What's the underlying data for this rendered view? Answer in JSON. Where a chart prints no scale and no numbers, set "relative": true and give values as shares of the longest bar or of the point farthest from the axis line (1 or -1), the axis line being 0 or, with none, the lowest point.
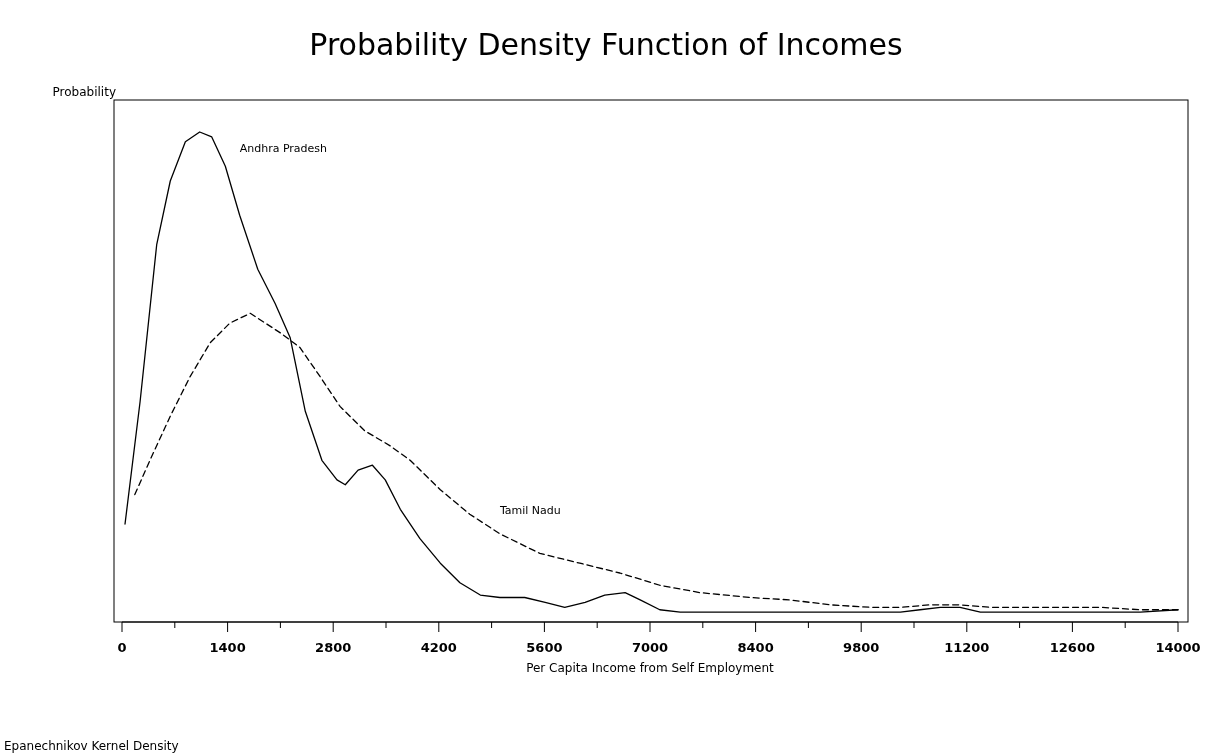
{
  "chart_data": {
    "type": "line",
    "title": "Probability Density Function of Incomes",
    "xlabel": "Per Capita Income from Self Employment",
    "ylabel": "Probability",
    "relative": true,
    "xlim": [
      0,
      14000
    ],
    "xticks": [
      0,
      {
        "value": 700,
        "label": null
      },
      1400,
      {
        "value": 2100,
        "label": null
      },
      2800,
      {
        "value": 3500,
        "label": null
      },
      4200,
      {
        "value": 4900,
        "label": null
      },
      5600,
      {
        "value": 6300,
        "label": null
      },
      7000,
      {
        "value": 7700,
        "label": null
      },
      8400,
      {
        "value": 9100,
        "label": null
      },
      9800,
      {
        "value": 10500,
        "label": null
      },
      11200,
      {
        "value": 11900,
        "label": null
      },
      12600,
      {
        "value": 13300,
        "label": null
      },
      14000
    ],
    "grid": false,
    "marker": "none",
    "annotations": [
      "Epanechnikov Kernel Density"
    ],
    "series": [
      {
        "name": "Andhra Pradesh",
        "color": "#000000",
        "line_style": "solid",
        "x": [
          40,
          240,
          460,
          640,
          840,
          1030,
          1190,
          1370,
          1560,
          1800,
          2030,
          2230,
          2430,
          2650,
          2850,
          2960,
          3130,
          3320,
          3490,
          3690,
          3950,
          4220,
          4480,
          4750,
          5010,
          5340,
          5610,
          5870,
          6140,
          6400,
          6670,
          6870,
          7130,
          7400,
          7930,
          8990,
          10320,
          10580,
          10850,
          11110,
          11380,
          11640,
          12970,
          13500,
          14000
        ],
        "values": [
          0.2,
          0.45,
          0.77,
          0.9,
          0.98,
          1,
          0.99,
          0.93,
          0.83,
          0.72,
          0.65,
          0.58,
          0.43,
          0.33,
          0.29,
          0.28,
          0.31,
          0.32,
          0.29,
          0.23,
          0.17,
          0.12,
          0.08,
          0.055,
          0.05,
          0.05,
          0.04,
          0.03,
          0.04,
          0.055,
          0.06,
          0.045,
          0.025,
          0.02,
          0.02,
          0.02,
          0.02,
          0.025,
          0.03,
          0.03,
          0.02,
          0.02,
          0.02,
          0.02,
          0.025
        ]
      },
      {
        "name": "Tamil Nadu",
        "color": "#000000",
        "line_style": "dashed",
        "x": [
          170,
          370,
          640,
          900,
          1170,
          1430,
          1700,
          1900,
          2100,
          2360,
          2630,
          2890,
          3220,
          3550,
          3820,
          4220,
          4610,
          5010,
          5540,
          6070,
          6600,
          7130,
          7660,
          8330,
          8860,
          9390,
          9920,
          10320,
          10710,
          11110,
          11510,
          12300,
          12970,
          13500,
          14000
        ],
        "values": [
          0.26,
          0.33,
          0.42,
          0.5,
          0.57,
          0.61,
          0.63,
          0.61,
          0.59,
          0.56,
          0.5,
          0.44,
          0.39,
          0.36,
          0.33,
          0.27,
          0.22,
          0.18,
          0.14,
          0.12,
          0.1,
          0.075,
          0.06,
          0.05,
          0.045,
          0.035,
          0.03,
          0.03,
          0.035,
          0.035,
          0.03,
          0.03,
          0.03,
          0.025,
          0.025
        ]
      }
    ]
  }
}
